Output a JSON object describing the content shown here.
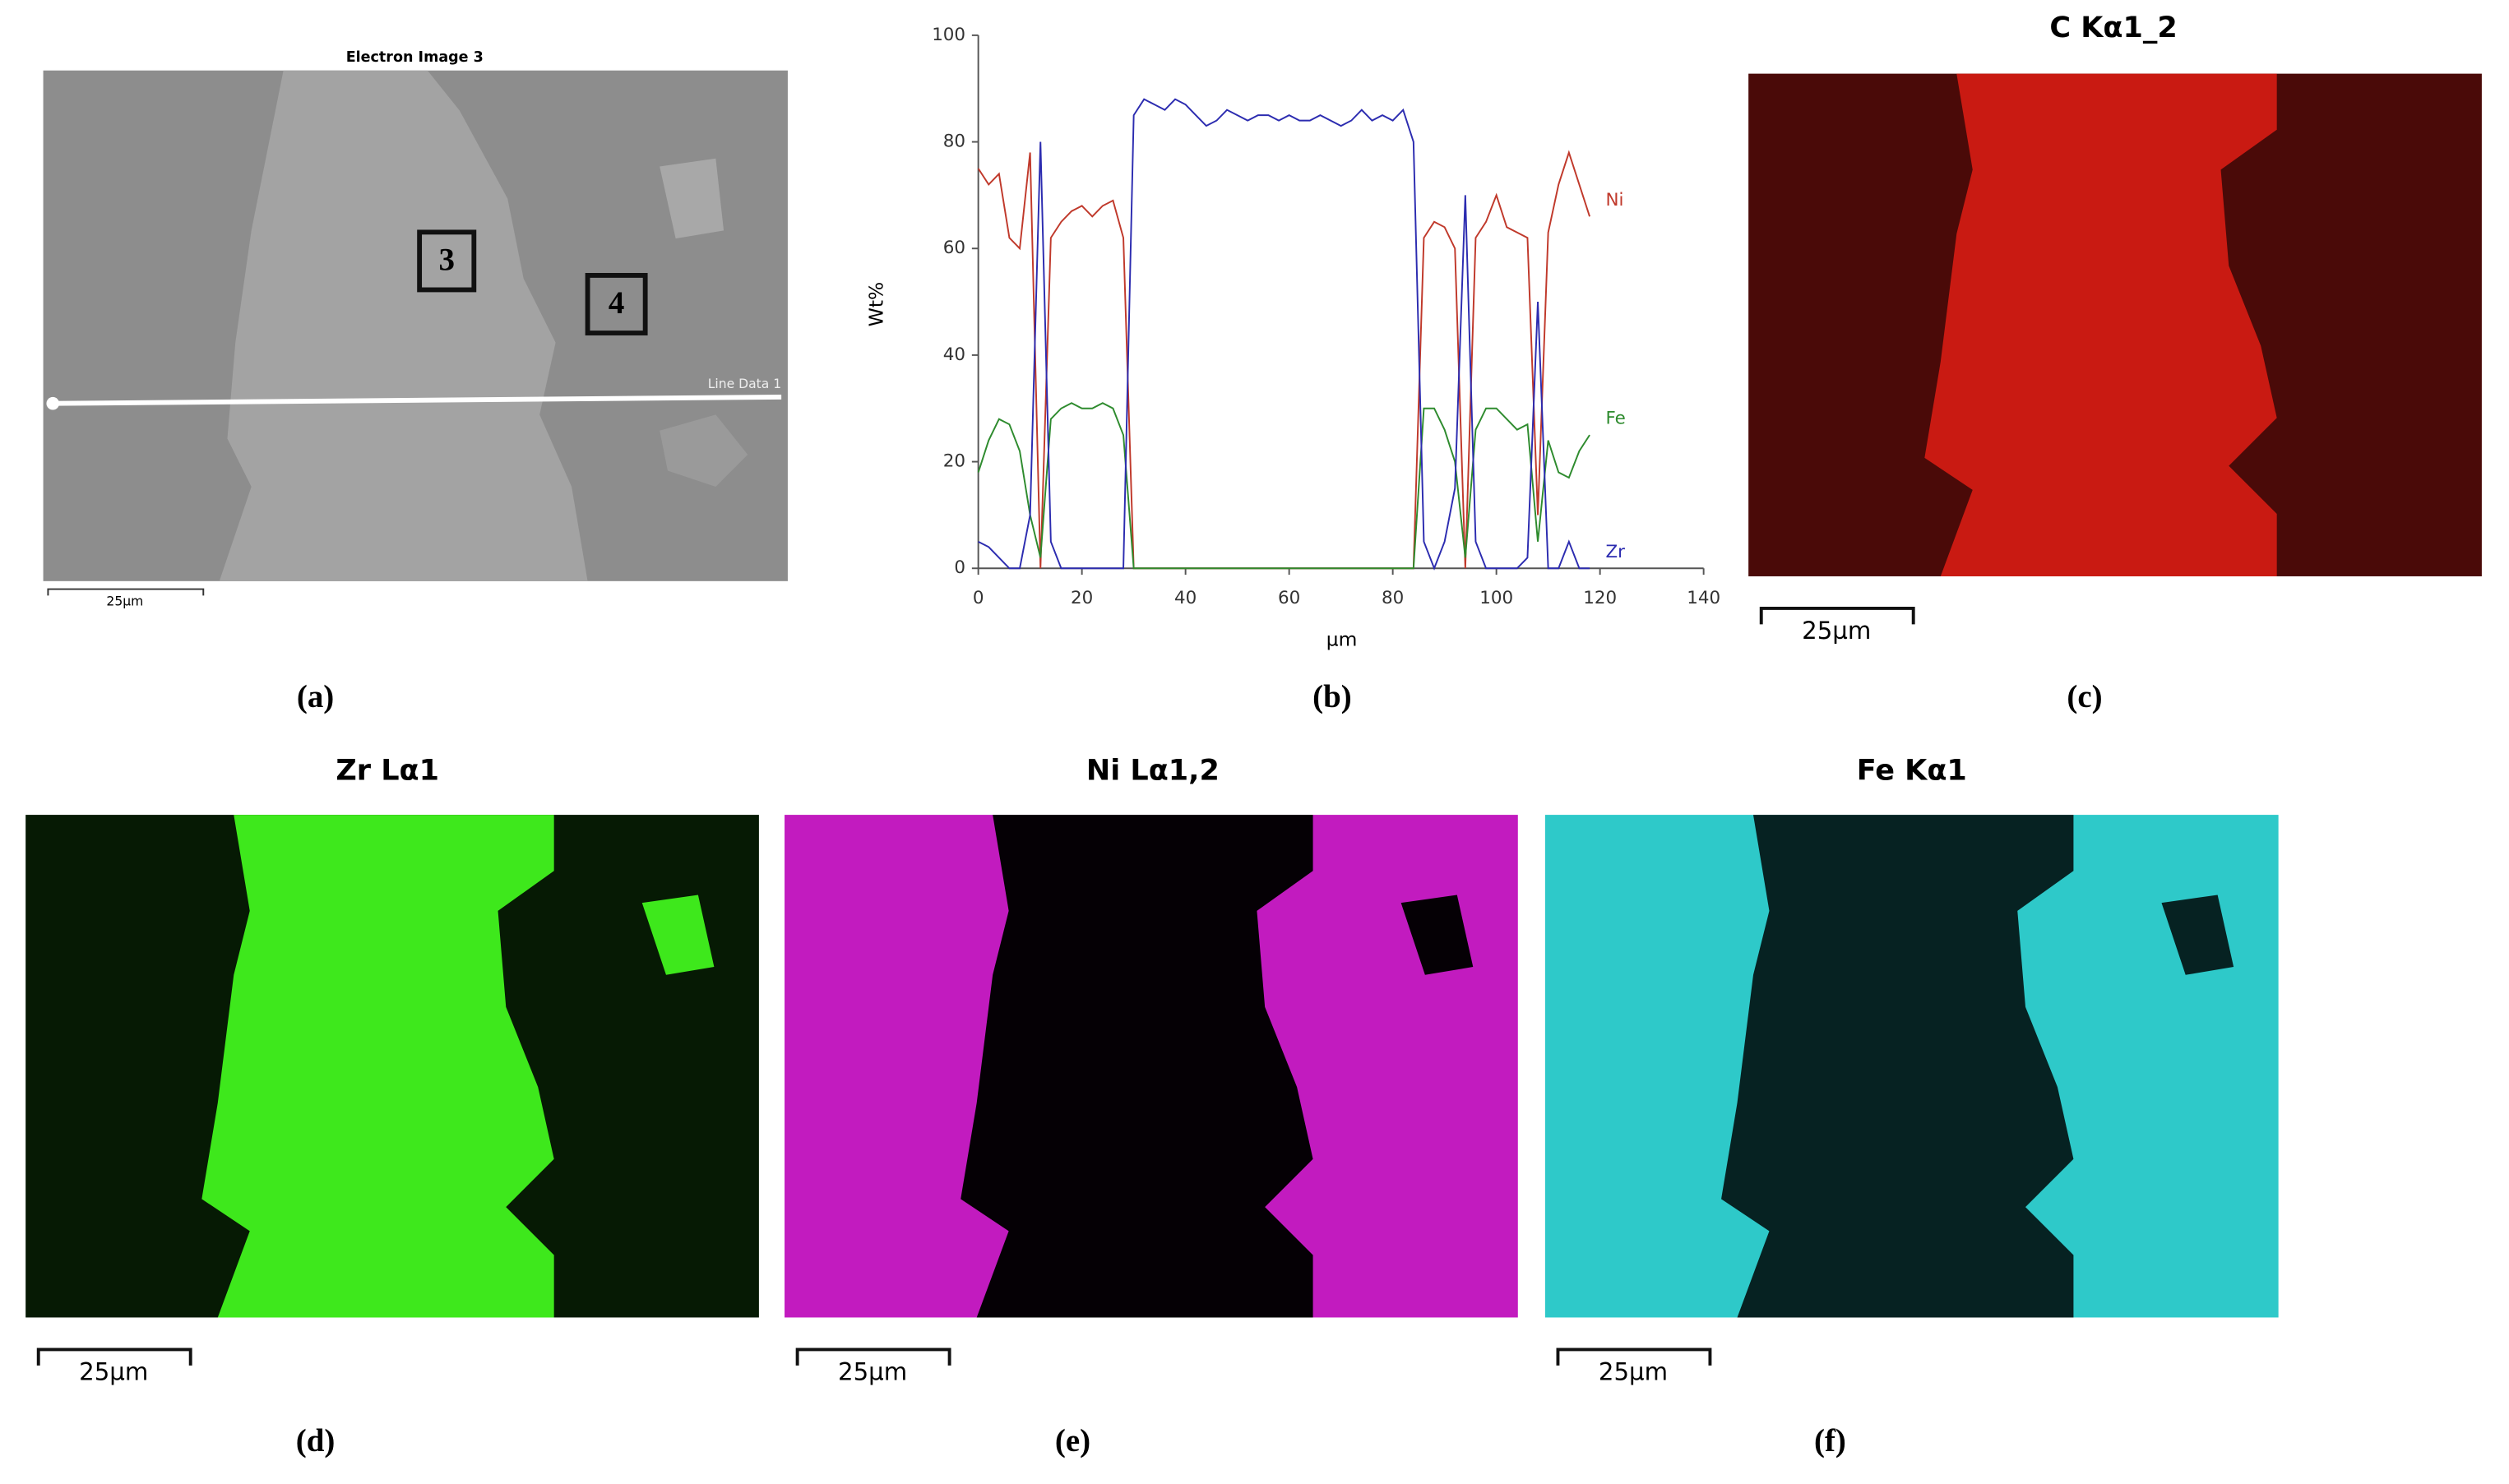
{
  "chart_data": {
    "type": "line",
    "xlabel": "µm",
    "ylabel": "Wt%",
    "xlim": [
      0,
      140
    ],
    "xticks": [
      0,
      20,
      40,
      60,
      80,
      100,
      120,
      140
    ],
    "ylim": [
      0,
      100
    ],
    "yticks": [
      0,
      20,
      40,
      60,
      80,
      100
    ],
    "x": [
      0,
      2,
      4,
      6,
      8,
      10,
      12,
      14,
      16,
      18,
      20,
      22,
      24,
      26,
      28,
      30,
      32,
      34,
      36,
      38,
      40,
      42,
      44,
      46,
      48,
      50,
      52,
      54,
      56,
      58,
      60,
      62,
      64,
      66,
      68,
      70,
      72,
      74,
      76,
      78,
      80,
      82,
      84,
      86,
      88,
      90,
      92,
      94,
      96,
      98,
      100,
      102,
      104,
      106,
      108,
      110,
      112,
      114,
      116,
      118
    ],
    "series": [
      {
        "name": "Ni",
        "color": "#c0392b",
        "values": [
          75,
          72,
          74,
          62,
          60,
          78,
          0,
          62,
          65,
          67,
          68,
          66,
          68,
          69,
          62,
          0,
          0,
          0,
          0,
          0,
          0,
          0,
          0,
          0,
          0,
          0,
          0,
          0,
          0,
          0,
          0,
          0,
          0,
          0,
          0,
          0,
          0,
          0,
          0,
          0,
          0,
          0,
          0,
          62,
          65,
          64,
          60,
          0,
          62,
          65,
          70,
          64,
          63,
          62,
          10,
          63,
          72,
          78,
          72,
          66
        ]
      },
      {
        "name": "Fe",
        "color": "#2e8b2e",
        "values": [
          18,
          24,
          28,
          27,
          22,
          10,
          2,
          28,
          30,
          31,
          30,
          30,
          31,
          30,
          25,
          0,
          0,
          0,
          0,
          0,
          0,
          0,
          0,
          0,
          0,
          0,
          0,
          0,
          0,
          0,
          0,
          0,
          0,
          0,
          0,
          0,
          0,
          0,
          0,
          0,
          0,
          0,
          0,
          30,
          30,
          26,
          20,
          2,
          26,
          30,
          30,
          28,
          26,
          27,
          5,
          24,
          18,
          17,
          22,
          25
        ]
      },
      {
        "name": "Zr",
        "color": "#2c2cb0",
        "values": [
          5,
          4,
          2,
          0,
          0,
          10,
          80,
          5,
          0,
          0,
          0,
          0,
          0,
          0,
          0,
          85,
          88,
          87,
          86,
          88,
          87,
          85,
          83,
          84,
          86,
          85,
          84,
          85,
          85,
          84,
          85,
          84,
          84,
          85,
          84,
          83,
          84,
          86,
          84,
          85,
          84,
          86,
          80,
          5,
          0,
          5,
          15,
          70,
          5,
          0,
          0,
          0,
          0,
          2,
          50,
          0,
          0,
          5,
          0,
          0
        ]
      }
    ]
  },
  "panel_labels": [
    "(a)",
    "(b)",
    "(c)",
    "(d)",
    "(e)",
    "(f)"
  ],
  "electron_image": {
    "title": "Electron Image 3",
    "markers": [
      "3",
      "4"
    ],
    "line_label": "Line Data 1",
    "scale": "25µm"
  },
  "maps": [
    {
      "title": "C Kα1_2",
      "scale": "25µm"
    },
    {
      "title": "Zr Lα1",
      "scale": "25µm"
    },
    {
      "title": "Ni Lα1,2",
      "scale": "25µm"
    },
    {
      "title": "Fe Kα1",
      "scale": "25µm"
    }
  ]
}
